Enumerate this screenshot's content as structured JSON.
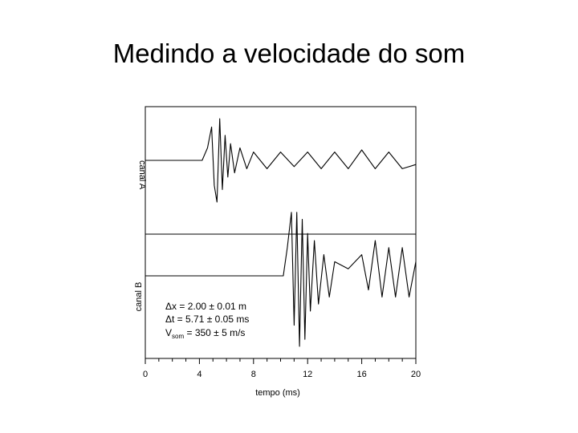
{
  "slide": {
    "title": "Medindo a velocidade do som"
  },
  "chart_data": {
    "type": "line",
    "xlabel": "tempo (ms)",
    "xlim": [
      0,
      20
    ],
    "xticks": [
      0,
      4,
      8,
      12,
      16,
      20
    ],
    "grid": false,
    "panels": [
      {
        "ylabel": "canal A",
        "series": [
          {
            "x": [
              0,
              4.2,
              4.6,
              4.9,
              5.1,
              5.3,
              5.5,
              5.7,
              5.9,
              6.1,
              6.3,
              6.6,
              7.0,
              7.5,
              8.0,
              9.0,
              10.0,
              11.0,
              12.0,
              13.0,
              14.0,
              15.0,
              16.0,
              17.0,
              18.0,
              19.0,
              20.0
            ],
            "y": [
              0,
              0,
              0.3,
              0.8,
              -0.6,
              -1.0,
              1.0,
              -0.7,
              0.6,
              -0.4,
              0.4,
              -0.3,
              0.3,
              -0.2,
              0.2,
              -0.2,
              0.2,
              -0.15,
              0.2,
              -0.2,
              0.2,
              -0.2,
              0.25,
              -0.2,
              0.2,
              -0.2,
              -0.1
            ]
          }
        ]
      },
      {
        "ylabel": "canal B",
        "series": [
          {
            "x": [
              0,
              10.2,
              10.5,
              10.8,
              11.0,
              11.2,
              11.4,
              11.6,
              11.8,
              12.0,
              12.2,
              12.5,
              12.8,
              13.2,
              13.6,
              14.0,
              15.0,
              16.0,
              16.5,
              17.0,
              17.5,
              18.0,
              18.5,
              19.0,
              19.5,
              20.0
            ],
            "y": [
              0,
              0,
              0.4,
              0.9,
              -0.7,
              0.9,
              -1.0,
              0.8,
              -0.9,
              0.6,
              -0.5,
              0.5,
              -0.4,
              0.3,
              -0.3,
              0.2,
              0.1,
              0.3,
              -0.2,
              0.5,
              -0.3,
              0.4,
              -0.3,
              0.4,
              -0.3,
              0.2
            ]
          }
        ]
      }
    ],
    "annotations": [
      {
        "prefix": "Δx = ",
        "value": "2.00 ± 0.01 m"
      },
      {
        "prefix": "Δt = ",
        "value": "5.71 ± 0.05 ms"
      },
      {
        "prefix": "V",
        "sub": "som",
        "rest": " = 350 ± 5 m/s"
      }
    ]
  }
}
